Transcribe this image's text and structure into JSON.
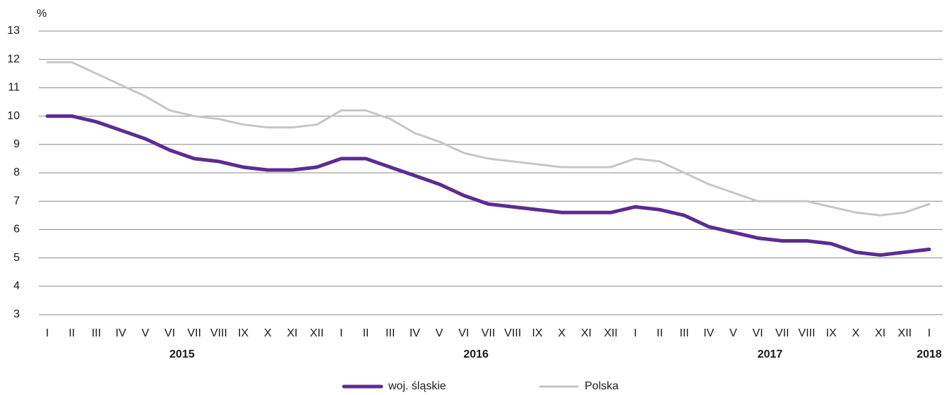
{
  "chart_data": {
    "type": "line",
    "y_label": "%",
    "categories": [
      "I",
      "II",
      "III",
      "IV",
      "V",
      "VI",
      "VII",
      "VIII",
      "IX",
      "X",
      "XI",
      "XII",
      "I",
      "II",
      "III",
      "IV",
      "V",
      "VI",
      "VII",
      "VIII",
      "IX",
      "X",
      "XI",
      "XII",
      "I",
      "II",
      "III",
      "IV",
      "V",
      "VI",
      "VII",
      "VIII",
      "IX",
      "X",
      "XI",
      "XII",
      "I"
    ],
    "years": [
      "2015",
      "2016",
      "2017",
      "2018"
    ],
    "series": [
      {
        "name": "woj. śląskie",
        "color": "#5b2c92",
        "width": 5,
        "values": [
          10.0,
          10.0,
          9.8,
          9.5,
          9.2,
          8.8,
          8.5,
          8.4,
          8.2,
          8.1,
          8.1,
          8.2,
          8.5,
          8.5,
          8.2,
          7.9,
          7.6,
          7.2,
          6.9,
          6.8,
          6.7,
          6.6,
          6.6,
          6.6,
          6.8,
          6.7,
          6.5,
          6.1,
          5.9,
          5.7,
          5.6,
          5.6,
          5.5,
          5.2,
          5.1,
          5.2,
          5.3
        ]
      },
      {
        "name": "Polska",
        "color": "#c6c6c6",
        "width": 3,
        "values": [
          11.9,
          11.9,
          11.5,
          11.1,
          10.7,
          10.2,
          10.0,
          9.9,
          9.7,
          9.6,
          9.6,
          9.7,
          10.2,
          10.2,
          9.9,
          9.4,
          9.1,
          8.7,
          8.5,
          8.4,
          8.3,
          8.2,
          8.2,
          8.2,
          8.5,
          8.4,
          8.0,
          7.6,
          7.3,
          7.0,
          7.0,
          7.0,
          6.8,
          6.6,
          6.5,
          6.6,
          6.9
        ]
      }
    ],
    "ylim": [
      3,
      13
    ],
    "yticks": [
      3,
      4,
      5,
      6,
      7,
      8,
      9,
      10,
      11,
      12,
      13
    ],
    "grid": true
  }
}
